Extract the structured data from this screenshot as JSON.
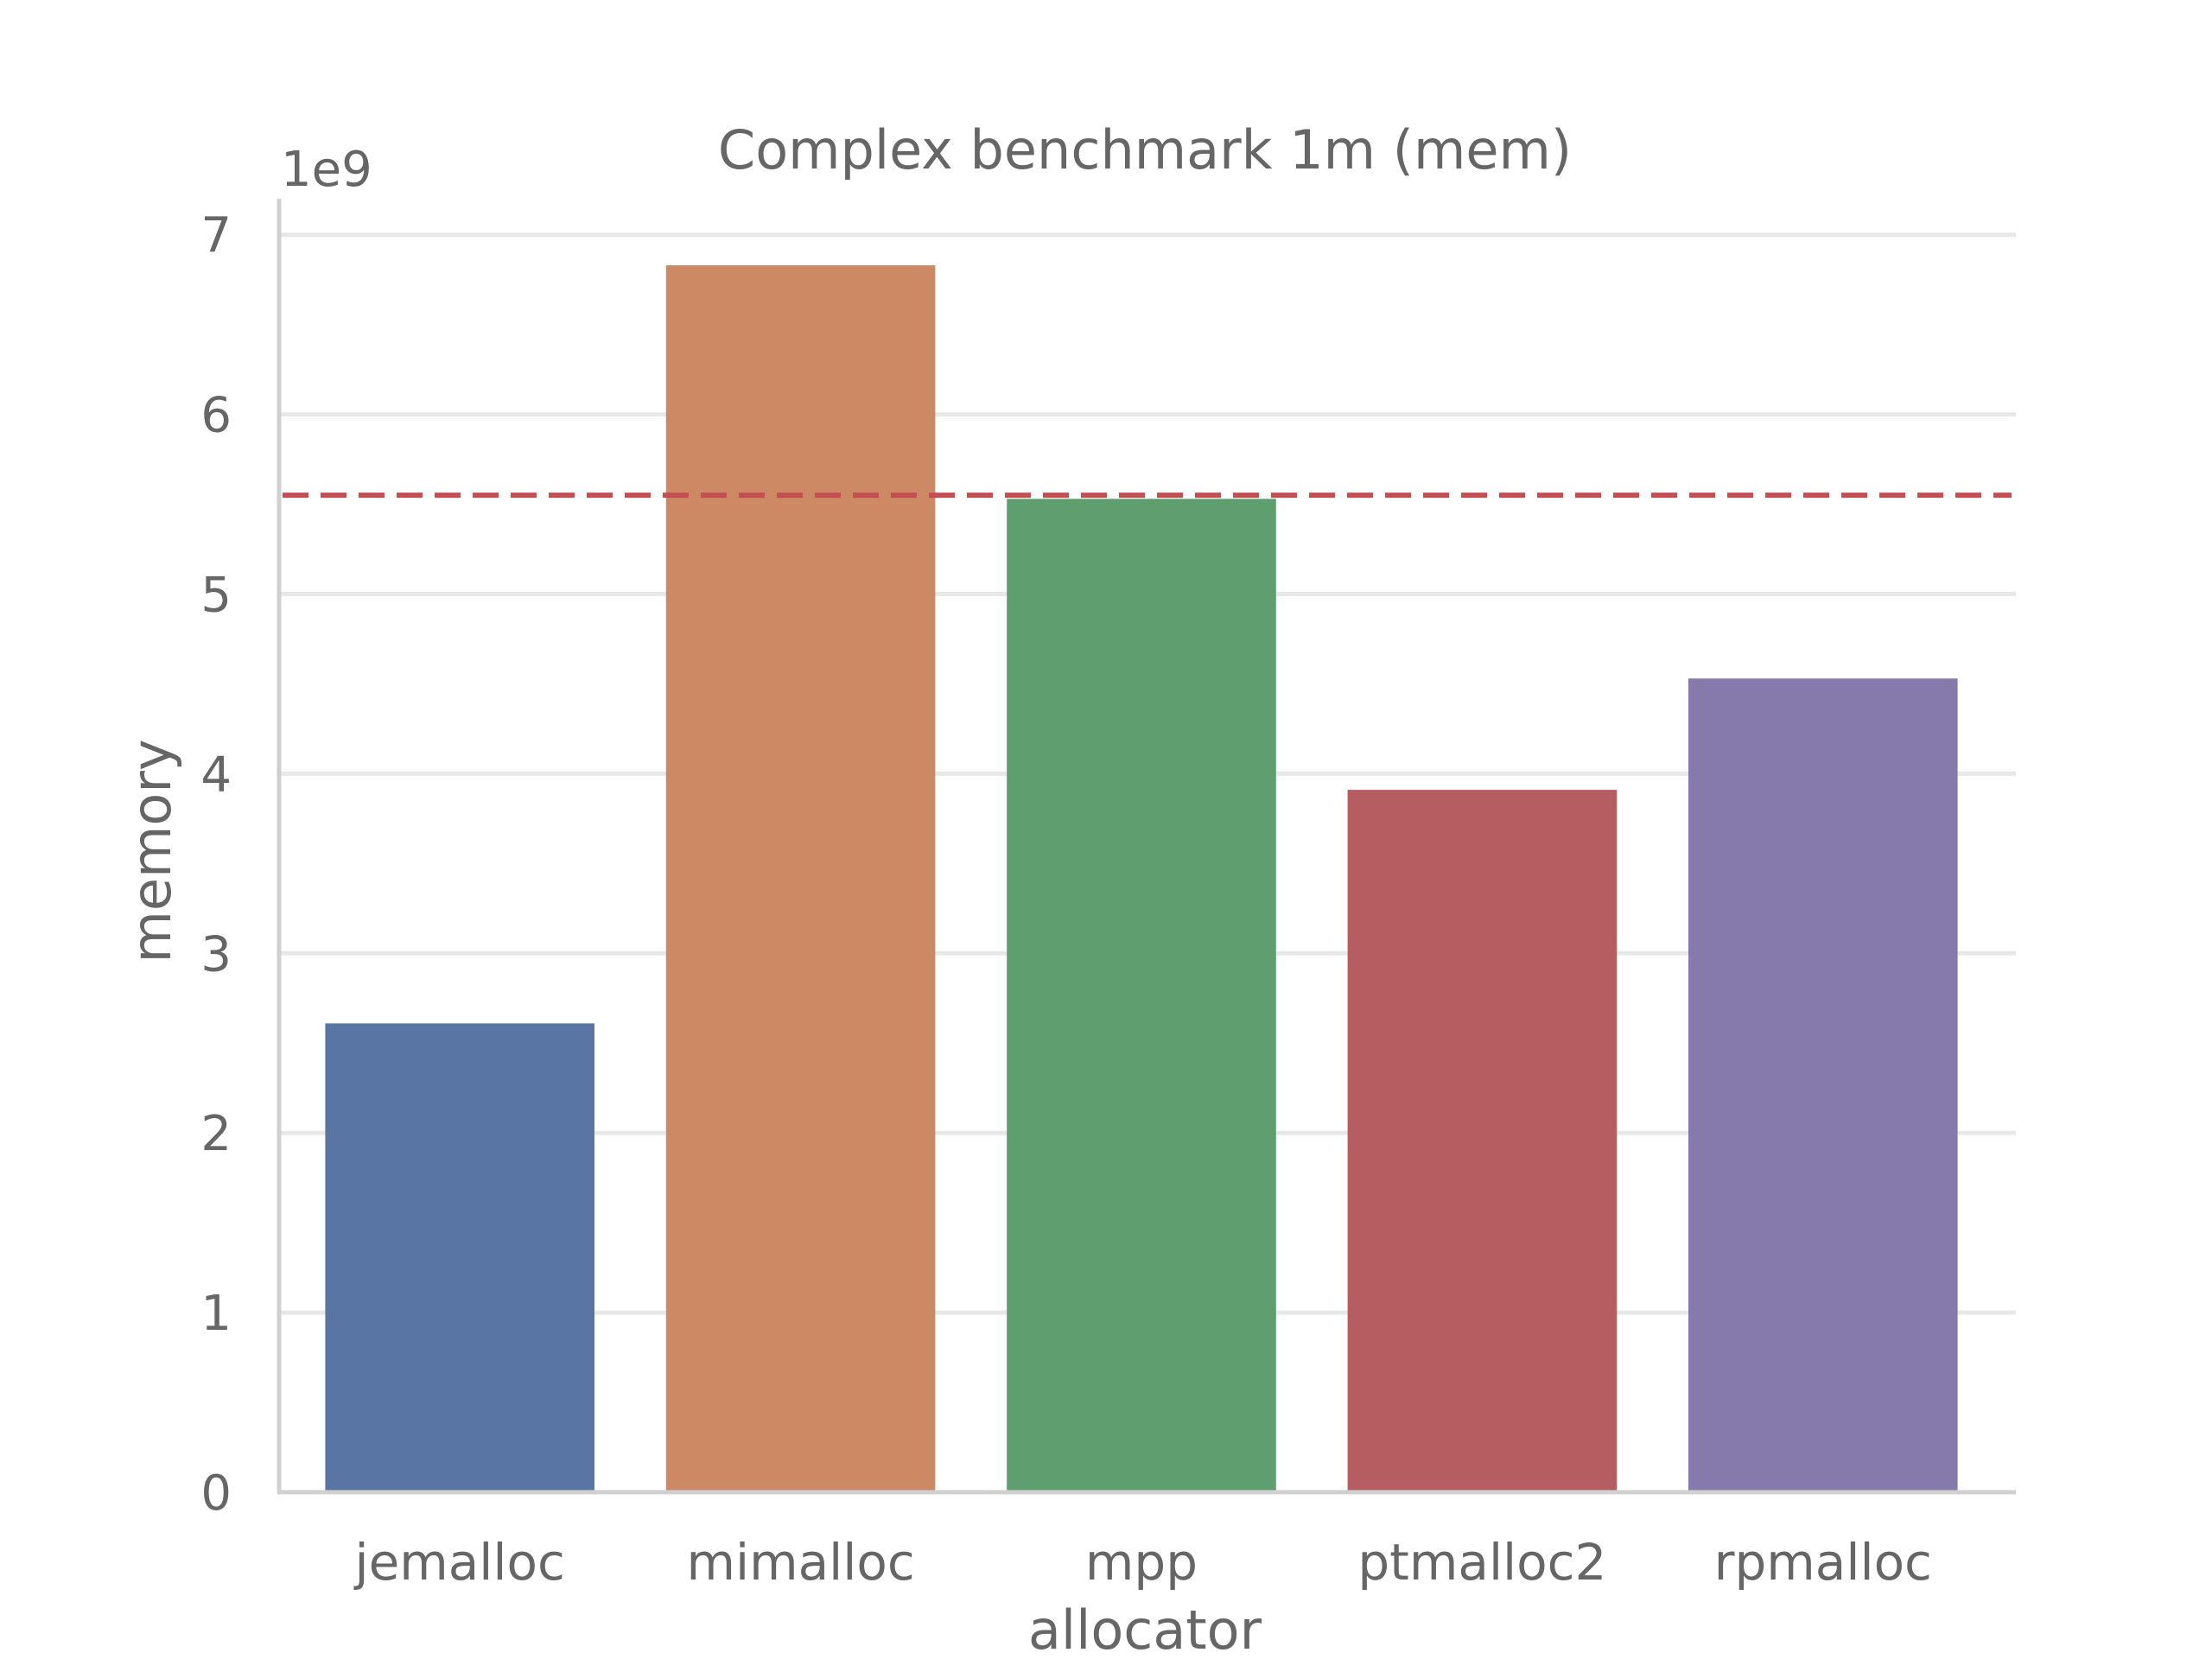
{
  "chart_data": {
    "type": "bar",
    "title": "Complex benchmark 1m (mem)",
    "xlabel": "allocator",
    "ylabel": "memory",
    "offset_label": "1e9",
    "scale": 1000000000,
    "categories": [
      "jemalloc",
      "mimalloc",
      "mpp",
      "ptmalloc2",
      "rpmalloc"
    ],
    "values": [
      2.61,
      6.83,
      5.53,
      3.91,
      4.53
    ],
    "colors": [
      "#5975a4",
      "#cc8963",
      "#5f9e6e",
      "#b55d60",
      "#857aab"
    ],
    "ylim": [
      0,
      7.2
    ],
    "yticks": [
      "0",
      "1",
      "2",
      "3",
      "4",
      "5",
      "6",
      "7"
    ],
    "grid": true,
    "reference_line": {
      "value": 5.55,
      "style": "dashed",
      "color": "#c44e52"
    }
  }
}
